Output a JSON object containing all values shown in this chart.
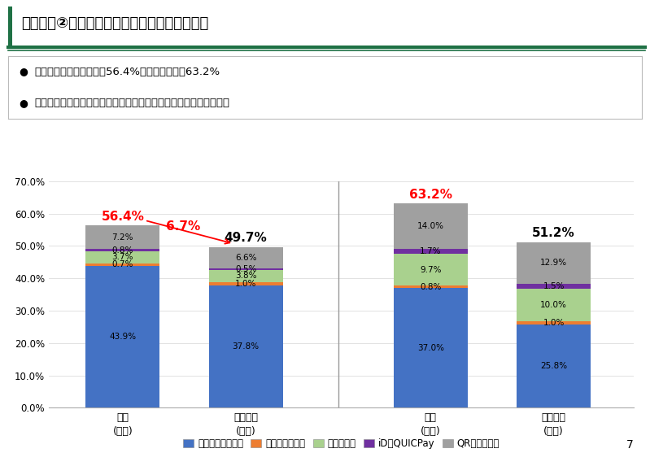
{
  "title": "結果詳細②　地域別のキャッシュレス決済比率",
  "bullet1": "区部では、金額ベースで56.4%、件数ベースで63.2%",
  "bullet2": "区部と市町村部では、キャッシュレス決済比率に地域差が見られる",
  "categories": [
    "区部\n(金額)",
    "市町村部\n(金額)",
    "区部\n(件数)",
    "市町村部\n(件数)"
  ],
  "legend_labels": [
    "クレジットカード",
    "デビットカード",
    "電子マネー",
    "iD・QUICPay",
    "QRコード決済"
  ],
  "colors": [
    "#4472C4",
    "#ED7D31",
    "#A9D18E",
    "#7030A0",
    "#A0A0A0"
  ],
  "series_keys": [
    "クレジットカード",
    "デビットカード",
    "電子マネー",
    "iD・QUICPay",
    "QRコード決済"
  ],
  "data": {
    "クレジットカード": [
      43.9,
      37.8,
      37.0,
      25.8
    ],
    "デビットカード": [
      0.7,
      1.0,
      0.8,
      1.0
    ],
    "電子マネー": [
      3.7,
      3.8,
      9.7,
      10.0
    ],
    "iD・QUICPay": [
      0.8,
      0.5,
      1.7,
      1.5
    ],
    "QRコード決済": [
      7.2,
      6.6,
      14.0,
      12.9
    ]
  },
  "totals": [
    56.4,
    49.7,
    63.2,
    51.2
  ],
  "total_colors": [
    "red",
    "black",
    "red",
    "black"
  ],
  "ylim": [
    0,
    70
  ],
  "yticks": [
    0,
    10,
    20,
    30,
    40,
    50,
    60,
    70
  ],
  "ytick_labels": [
    "0.0%",
    "10.0%",
    "20.0%",
    "30.0%",
    "40.0%",
    "50.0%",
    "60.0%",
    "70.0%"
  ],
  "background_color": "#FFFFFF",
  "page_number": "7",
  "header_green": "#1F7145",
  "arrow_label": "6.7%",
  "bar_width": 0.6,
  "x_positions": [
    0.5,
    1.5,
    3.0,
    4.0
  ]
}
